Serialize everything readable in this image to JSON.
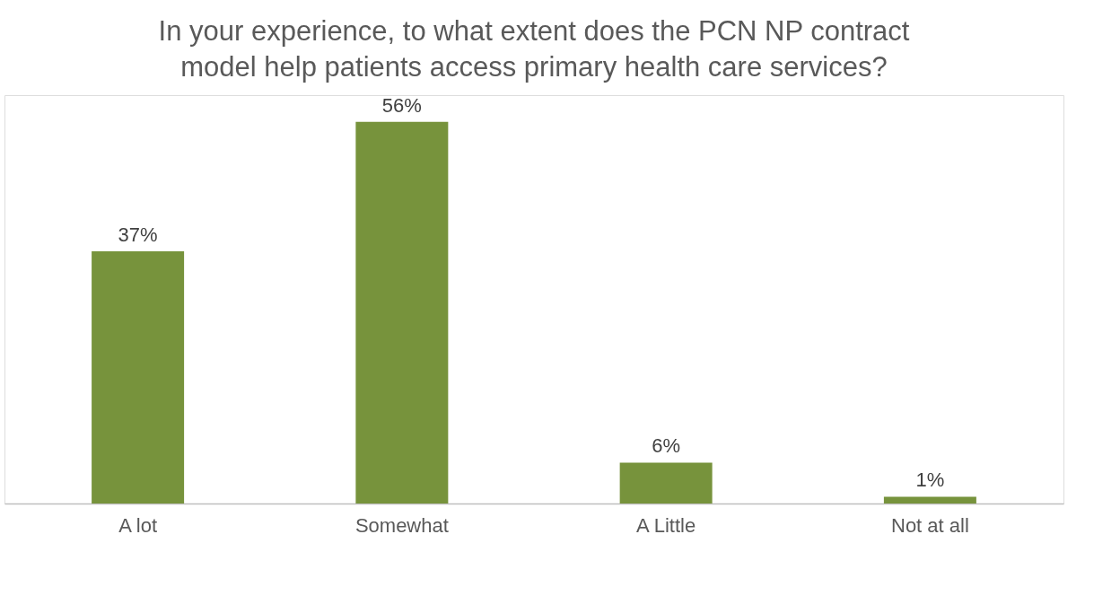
{
  "chart_data": {
    "type": "bar",
    "title": "In your experience, to what extent  does the PCN NP contract model help patients access primary health care services?",
    "categories": [
      "A lot",
      "Somewhat",
      "A Little",
      "Not at all"
    ],
    "values": [
      37,
      56,
      6,
      1
    ],
    "value_labels": [
      "37%",
      "56%",
      "6%",
      "1%"
    ],
    "color": "#77933c"
  }
}
